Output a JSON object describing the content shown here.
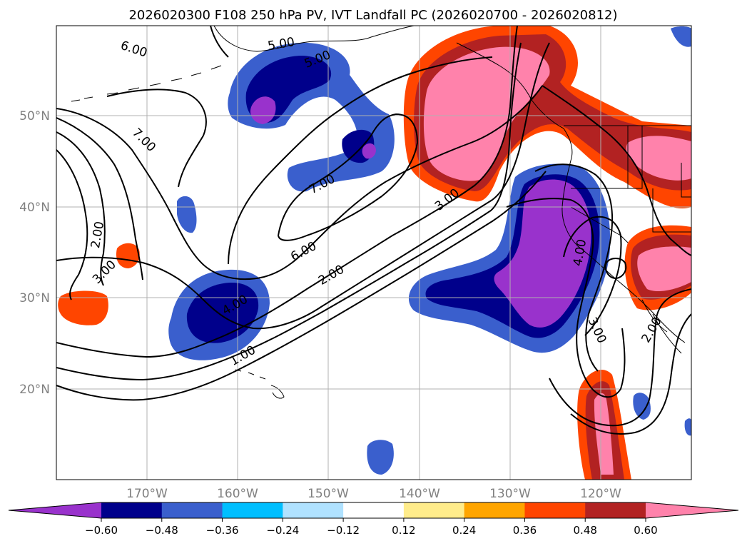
{
  "title": "2026020300 F108 250 hPa PV, IVT Landfall PC (2026020700 - 2026020812)",
  "map": {
    "lon_range": [
      -180,
      -110
    ],
    "lat_range": [
      10,
      60
    ],
    "lon_labels": [
      "170°W",
      "160°W",
      "150°W",
      "140°W",
      "130°W",
      "120°W"
    ],
    "lat_labels": [
      "50°N",
      "40°N",
      "30°N",
      "20°N"
    ],
    "grid": true
  },
  "contours": {
    "color": "#000000",
    "labels": [
      "6.00",
      "7.00",
      "5.00",
      "5.00",
      "7.00",
      "3.00",
      "6.00",
      "2.00",
      "4.00",
      "1.00",
      "2.00",
      "3.00",
      "4.00",
      "3.00",
      "2.00"
    ]
  },
  "colorbar": {
    "colors": [
      "#9932cc",
      "#00008b",
      "#3a5fcd",
      "#00bfff",
      "#b0e2ff",
      "#ffffff",
      "#ffec8b",
      "#ffa500",
      "#ff4500",
      "#b22222",
      "#ff82ab"
    ],
    "tick_labels": [
      "−0.60",
      "−0.48",
      "−0.36",
      "−0.24",
      "−0.12",
      "0.12",
      "0.24",
      "0.36",
      "0.48",
      "0.60"
    ],
    "extend": "both"
  }
}
